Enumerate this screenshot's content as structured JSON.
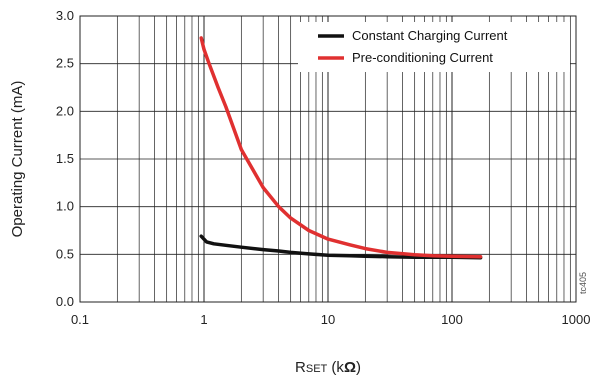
{
  "chart_data": {
    "type": "line",
    "xscale": "log",
    "xlim": [
      0.1,
      1000
    ],
    "ylim": [
      0,
      3.0
    ],
    "xticks": [
      "0.1",
      "1",
      "10",
      "100",
      "1000"
    ],
    "yticks": [
      "0.0",
      "0.5",
      "1.0",
      "1.5",
      "2.0",
      "2.5",
      "3.0"
    ],
    "ylabel": "Operating Current (mA)",
    "xlabel_main": "R",
    "xlabel_sub": "SET",
    "xlabel_unit_open": " (k",
    "xlabel_omega": "Ω",
    "xlabel_unit_close": ")",
    "grid": true,
    "legend_position": "top-right",
    "side_note": "tc405",
    "series": [
      {
        "name": "Constant Charging Current",
        "color": "#111111",
        "points": [
          [
            0.95,
            0.69
          ],
          [
            1.05,
            0.63
          ],
          [
            1.2,
            0.61
          ],
          [
            1.5,
            0.595
          ],
          [
            2,
            0.575
          ],
          [
            3,
            0.55
          ],
          [
            4,
            0.535
          ],
          [
            5,
            0.52
          ],
          [
            7,
            0.505
          ],
          [
            10,
            0.49
          ],
          [
            15,
            0.485
          ],
          [
            20,
            0.48
          ],
          [
            30,
            0.475
          ],
          [
            50,
            0.47
          ],
          [
            100,
            0.47
          ],
          [
            170,
            0.465
          ]
        ]
      },
      {
        "name": "Pre-conditioning Current",
        "color": "#e03030",
        "points": [
          [
            0.95,
            2.77
          ],
          [
            1.0,
            2.65
          ],
          [
            1.1,
            2.5
          ],
          [
            1.3,
            2.25
          ],
          [
            1.5,
            2.05
          ],
          [
            2,
            1.6
          ],
          [
            2.5,
            1.38
          ],
          [
            3,
            1.2
          ],
          [
            4,
            1.0
          ],
          [
            5,
            0.88
          ],
          [
            7,
            0.75
          ],
          [
            10,
            0.66
          ],
          [
            15,
            0.6
          ],
          [
            20,
            0.56
          ],
          [
            30,
            0.52
          ],
          [
            50,
            0.495
          ],
          [
            70,
            0.485
          ],
          [
            100,
            0.48
          ],
          [
            170,
            0.475
          ]
        ]
      }
    ]
  }
}
